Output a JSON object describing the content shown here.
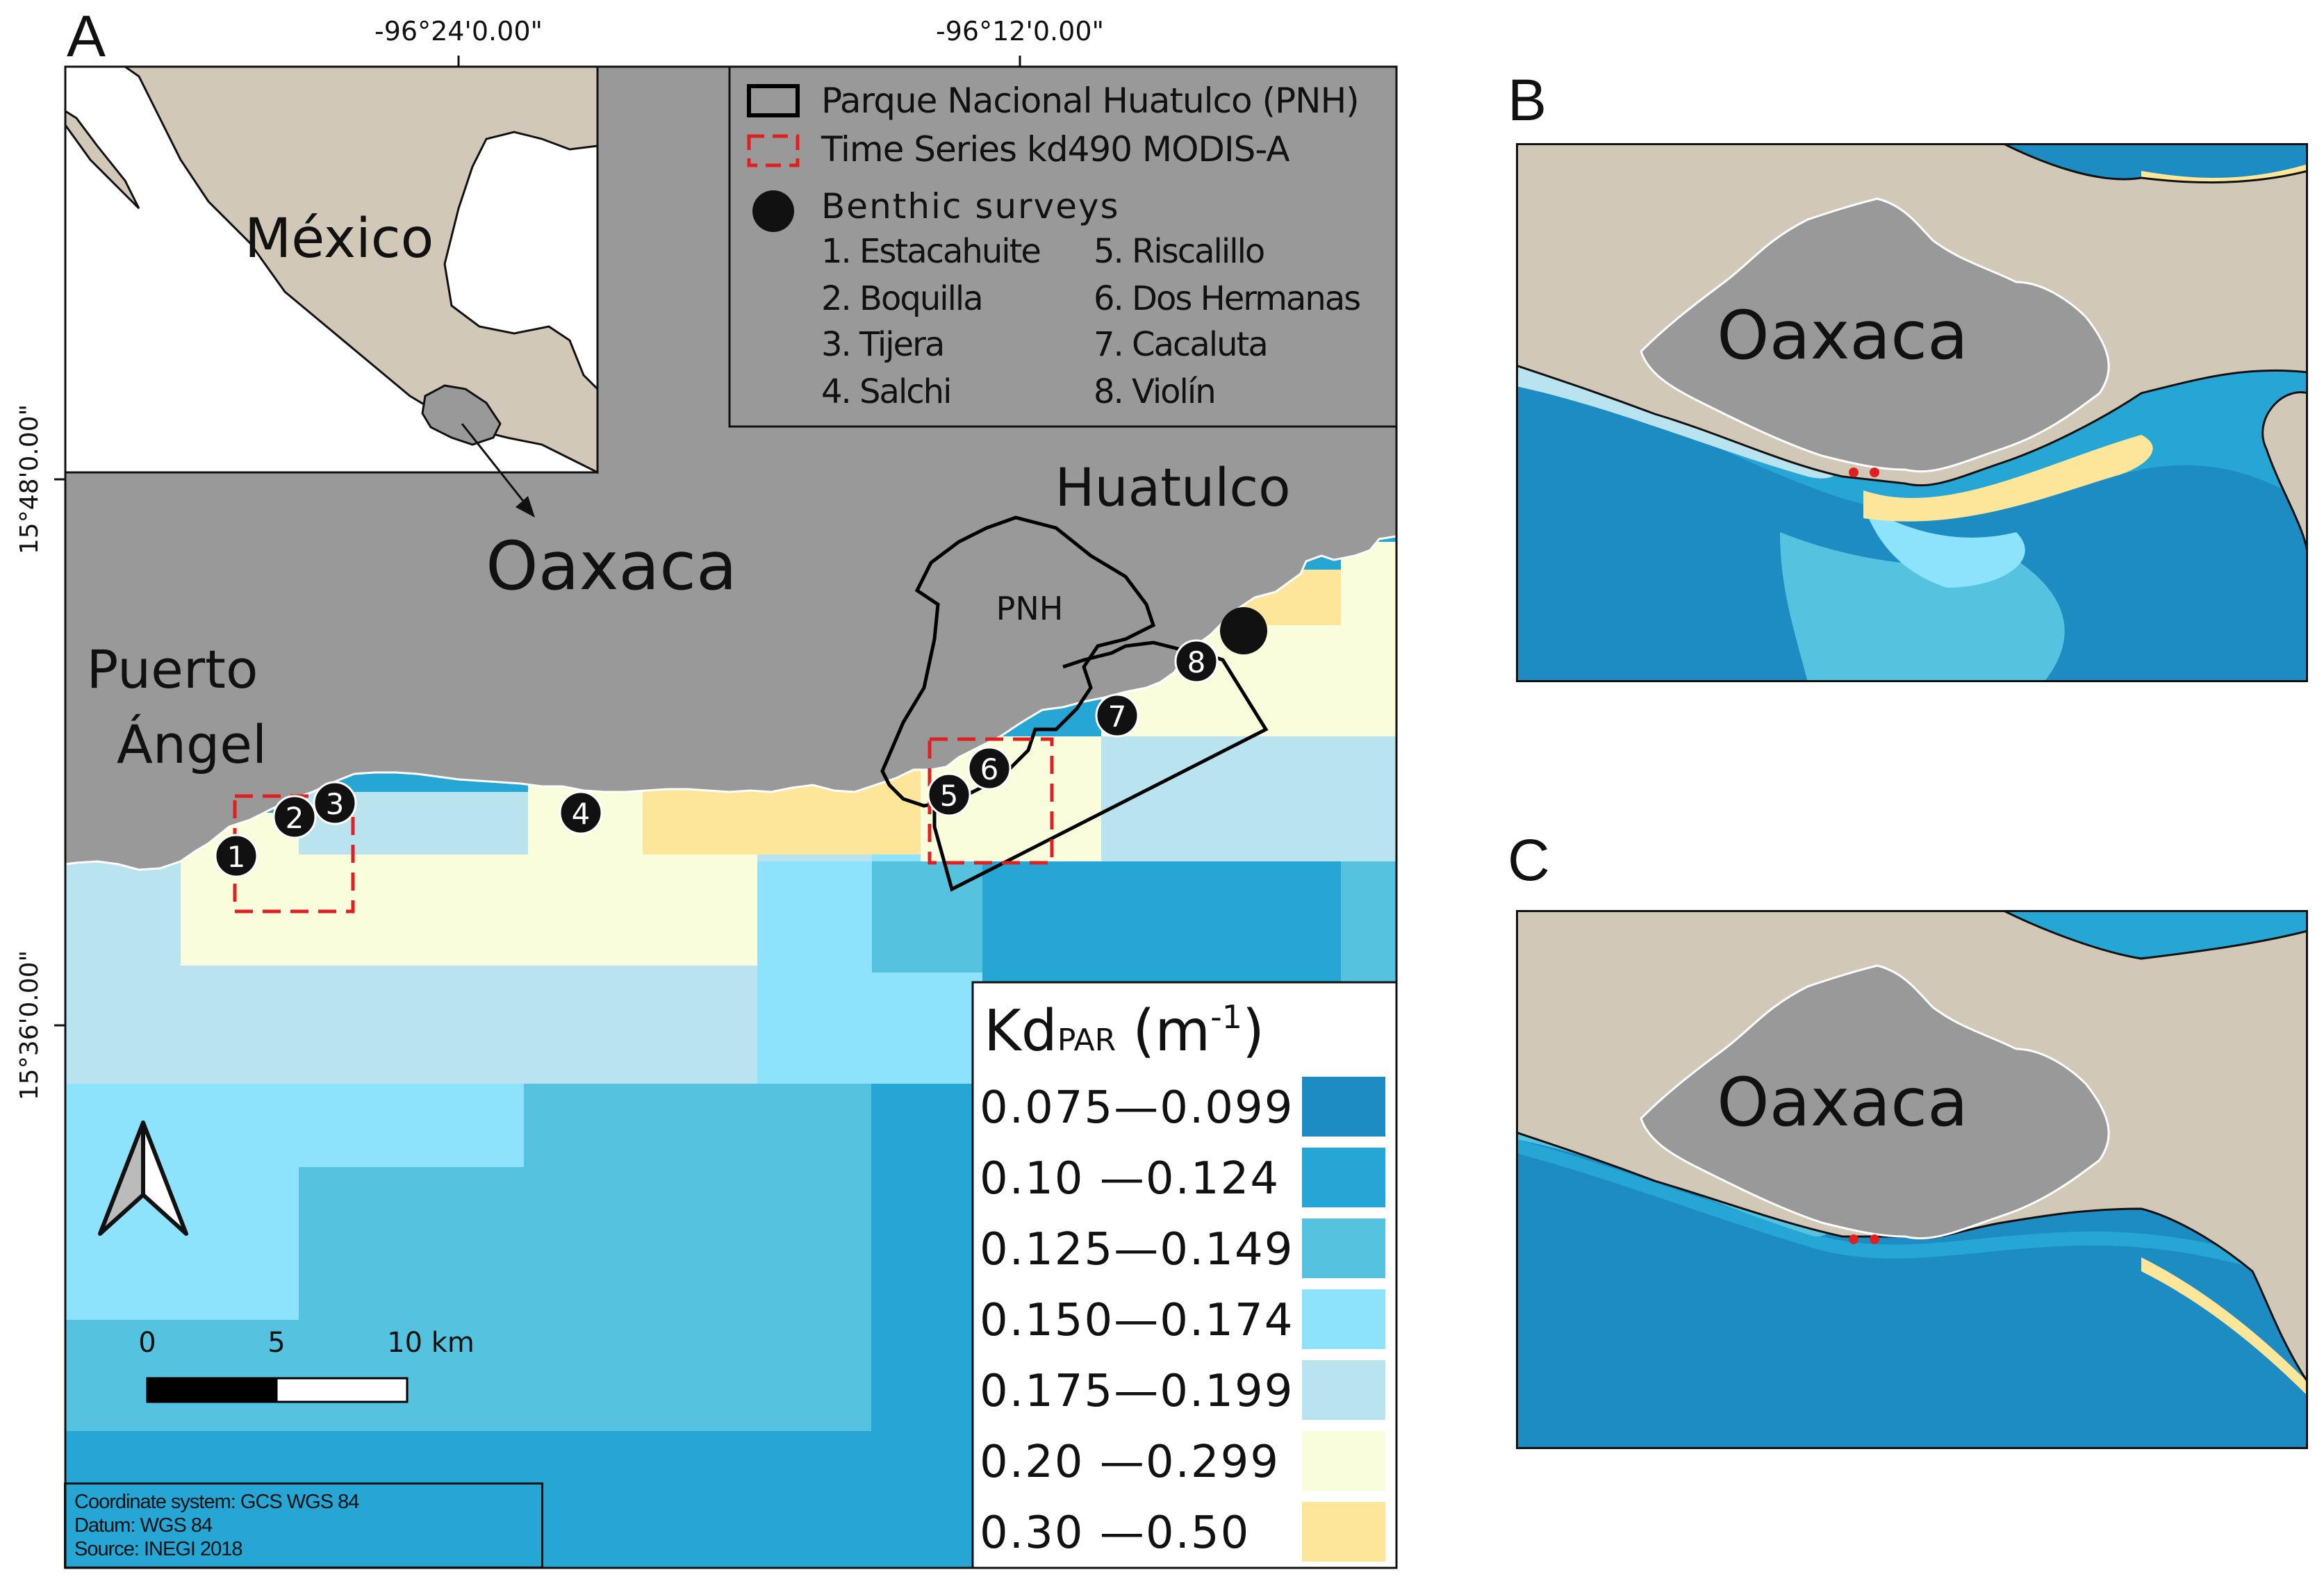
{
  "panels": {
    "a": "A",
    "b": "B",
    "c": "C"
  },
  "colors": {
    "land_gray": "#999999",
    "land_tan": "#d2c8b7",
    "kd_bins": [
      "#1c8cc3",
      "#25a6d4",
      "#55c2df",
      "#8de3fb",
      "#b9e3ef",
      "#f9fddb",
      "#fde699"
    ]
  },
  "panel_a": {
    "lon_labels": [
      "-96°24'0.00\"",
      "-96°12'0.00\""
    ],
    "lat_labels": [
      "15°48'0.00\"",
      "15°36'0.00\""
    ],
    "inset": {
      "country_label": "México"
    },
    "place_labels": {
      "state": "Oaxaca",
      "town_1_line1": "Puerto",
      "town_1_line2": "Ángel",
      "town_2": "Huatulco",
      "park": "PNH"
    },
    "legend": {
      "park_label": "Parque Nacional Huatulco (PNH)",
      "timeseries_label": "Time Series kd490 MODIS-A",
      "surveys_label": "Benthic surveys",
      "sites_col1": [
        "1. Estacahuite",
        "2. Boquilla",
        "3. Tijera",
        "4. Salchi"
      ],
      "sites_col2": [
        "5. Riscalillo",
        "6. Dos Hermanas",
        "7. Cacaluta",
        "8. Violín"
      ]
    },
    "site_markers": [
      "1",
      "2",
      "3",
      "4",
      "5",
      "6",
      "7",
      "8"
    ],
    "scale_bar": {
      "ticks": [
        "0",
        "5",
        "10 km"
      ]
    },
    "kd_legend": {
      "title_main": "Kd",
      "title_sub": "PAR",
      "title_unit": "(m",
      "title_exp": "-1",
      "title_close": ")",
      "classes": [
        "0.075—0.099",
        "0.10 —0.124",
        "0.125—0.149",
        "0.150—0.174",
        "0.175—0.199",
        "0.20 —0.299",
        "0.30 —0.50"
      ]
    },
    "coordinate_box": [
      "Coordinate system: GCS WGS 84",
      "Datum: WGS 84",
      "Source: INEGI 2018"
    ]
  },
  "panel_b": {
    "state_label": "Oaxaca"
  },
  "panel_c": {
    "state_label": "Oaxaca"
  }
}
